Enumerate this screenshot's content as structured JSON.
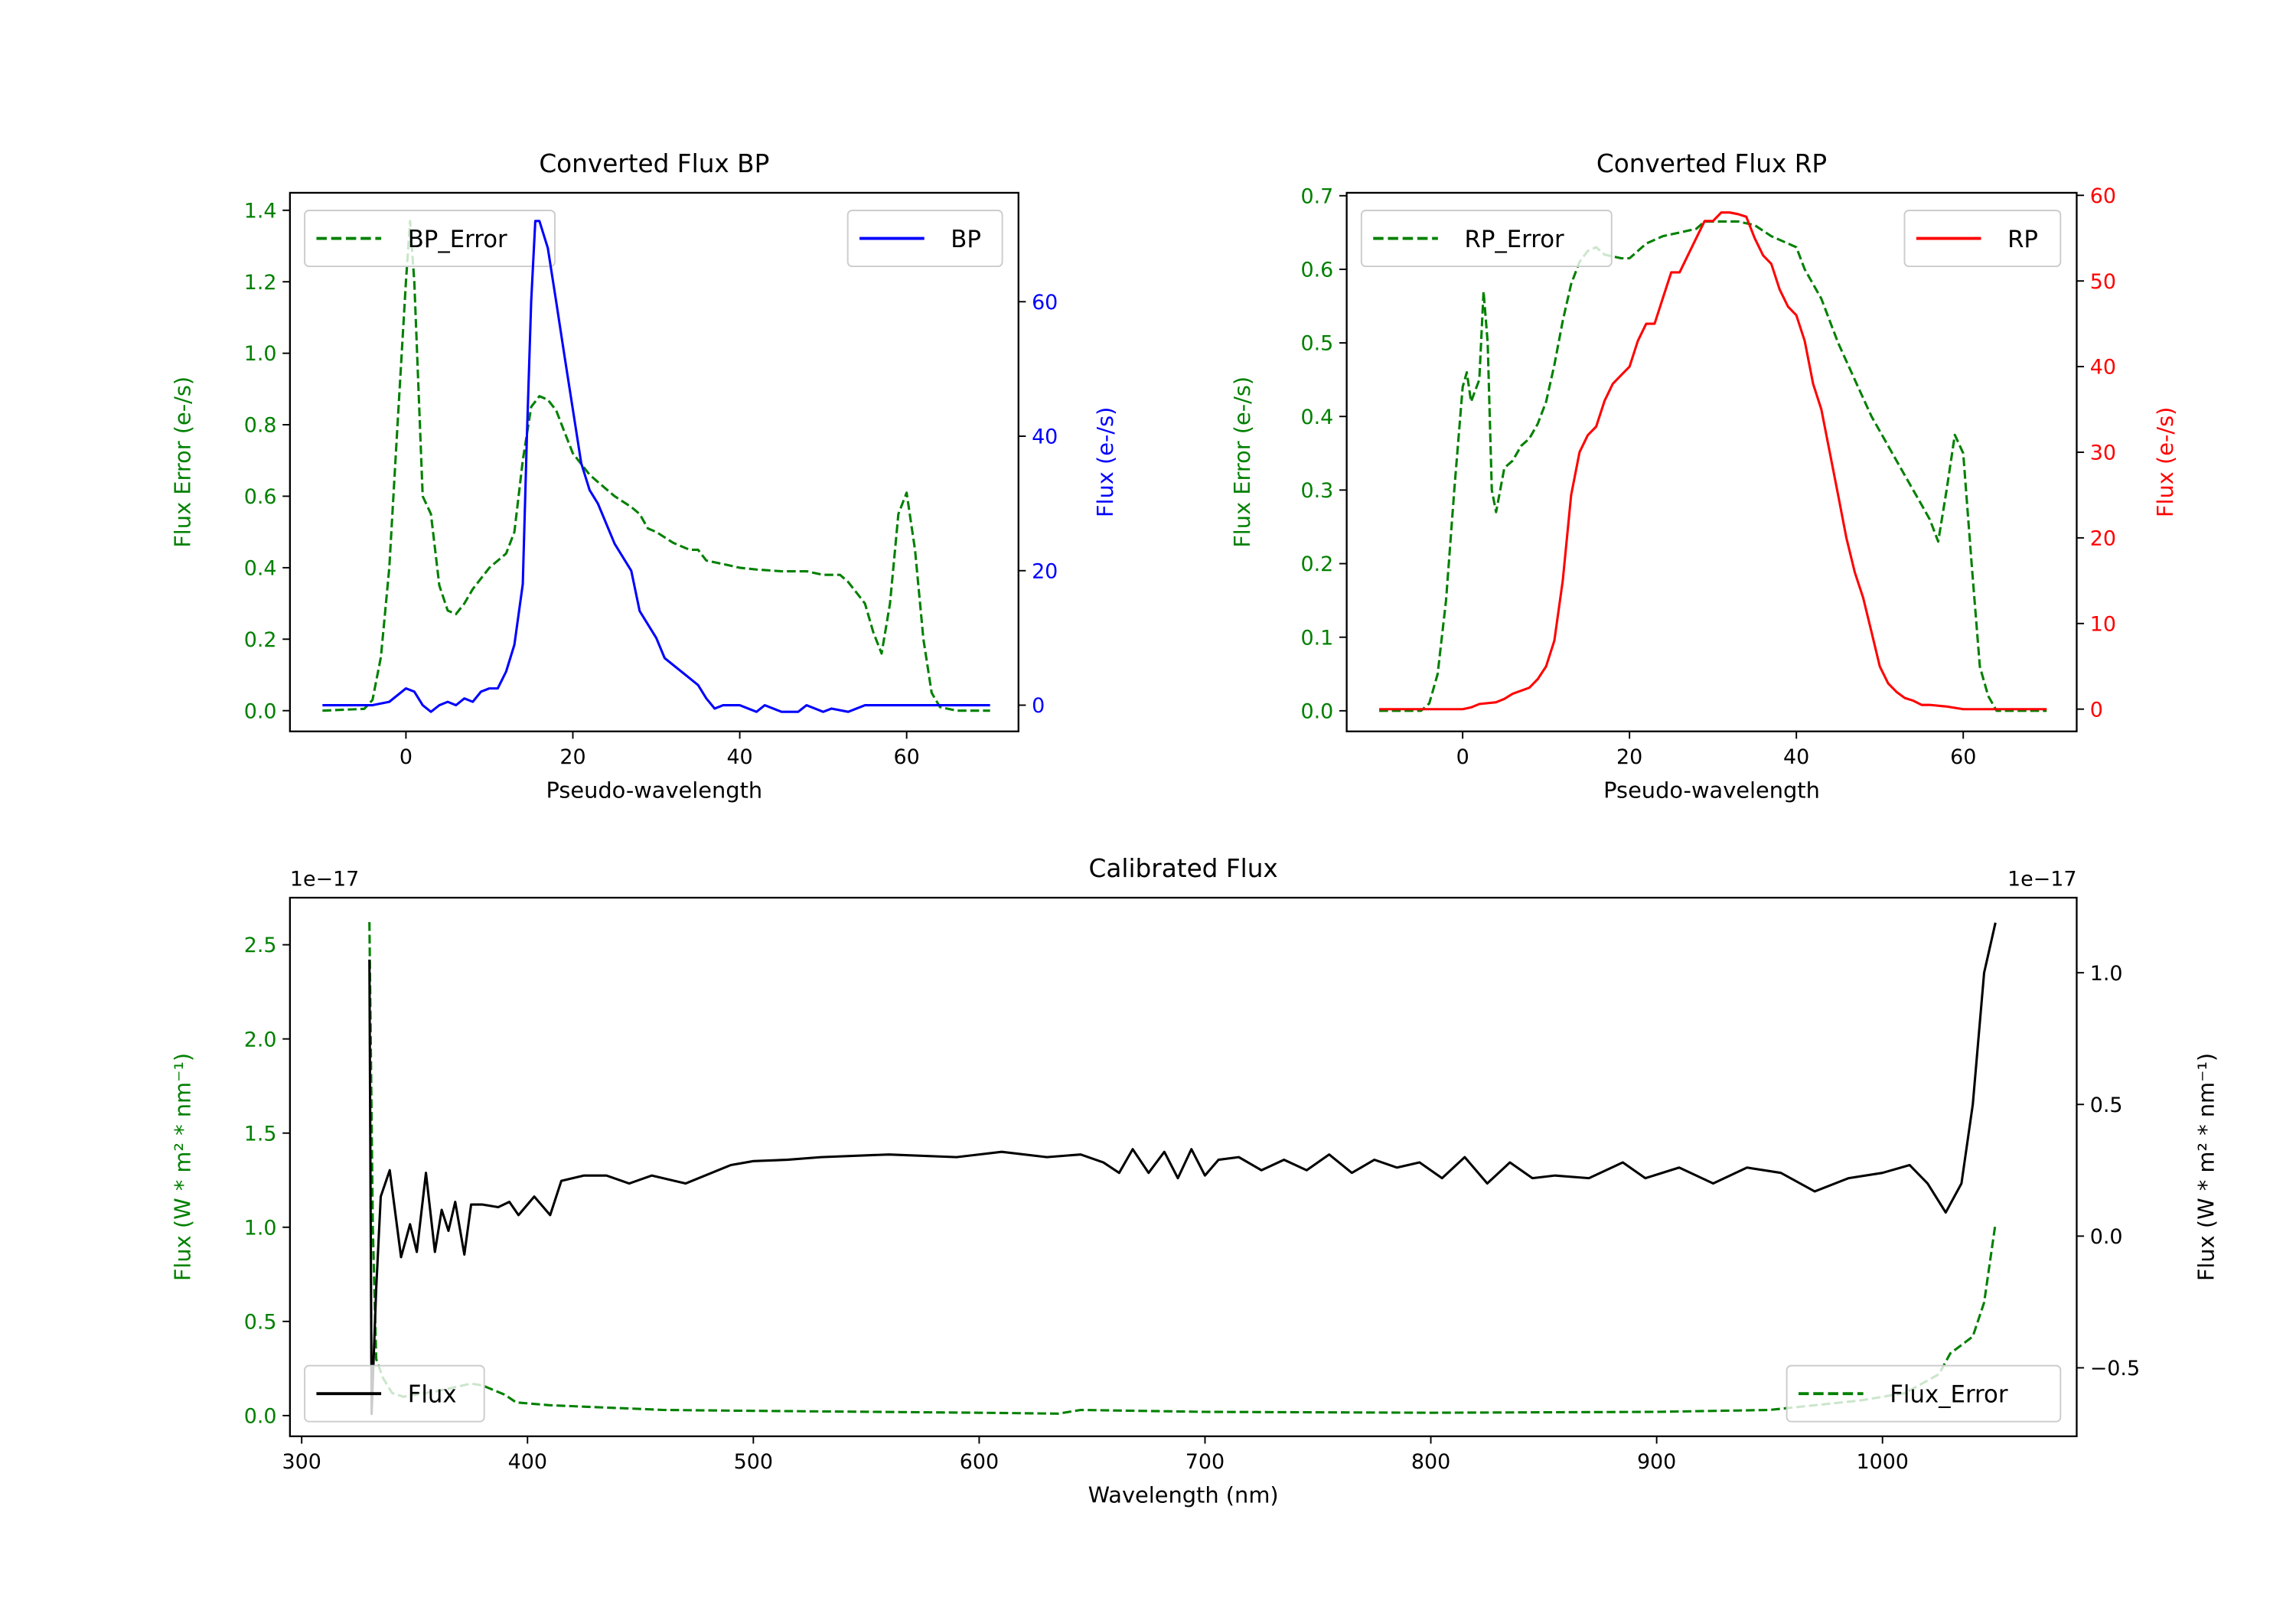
{
  "chart_data": [
    {
      "type": "line",
      "title": "Converted Flux BP",
      "xlabel": "Pseudo-wavelength",
      "xlim": [
        -13.9,
        73.4
      ],
      "xticks": [
        0,
        20,
        40,
        60
      ],
      "xtick_labels": [
        "0",
        "20",
        "40",
        "60"
      ],
      "left_axis": {
        "label": "Flux Error (e-/s)",
        "color": "#008000",
        "lim": [
          -0.058,
          1.449
        ],
        "ticks": [
          0,
          0.2,
          0.4,
          0.6,
          0.8,
          1.0,
          1.2,
          1.4
        ],
        "tick_labels": [
          "0.0",
          "0.2",
          "0.4",
          "0.6",
          "0.8",
          "1.0",
          "1.2",
          "1.4"
        ]
      },
      "right_axis": {
        "label": "Flux (e-/s)",
        "color": "#0000ff",
        "lim": [
          -3.9,
          76.2
        ],
        "ticks": [
          0,
          20,
          40,
          60
        ],
        "tick_labels": [
          "0",
          "20",
          "40",
          "60"
        ]
      },
      "series": [
        {
          "name": "BP_Error",
          "axis": "left",
          "color": "#008000",
          "style": "dashed",
          "x": [
            -10,
            -5,
            -4,
            -3,
            -2,
            -1,
            0,
            0.5,
            1,
            2,
            3,
            4,
            5,
            6,
            7,
            8,
            10,
            12,
            13,
            14,
            15,
            16,
            17,
            18,
            19,
            20,
            22,
            23,
            25,
            27,
            28,
            29,
            30,
            32,
            34,
            35,
            36,
            38,
            40,
            42,
            45,
            48,
            50,
            52,
            53,
            54,
            55,
            56,
            57,
            58,
            59,
            60,
            61,
            62,
            63,
            64,
            66,
            70
          ],
          "y": [
            0,
            0.005,
            0.03,
            0.15,
            0.4,
            0.8,
            1.2,
            1.37,
            1.2,
            0.6,
            0.55,
            0.35,
            0.28,
            0.27,
            0.3,
            0.34,
            0.4,
            0.44,
            0.5,
            0.7,
            0.85,
            0.88,
            0.87,
            0.84,
            0.78,
            0.72,
            0.66,
            0.64,
            0.6,
            0.57,
            0.55,
            0.51,
            0.5,
            0.47,
            0.45,
            0.45,
            0.42,
            0.41,
            0.4,
            0.395,
            0.39,
            0.39,
            0.38,
            0.38,
            0.36,
            0.33,
            0.3,
            0.22,
            0.16,
            0.3,
            0.55,
            0.61,
            0.45,
            0.2,
            0.05,
            0.01,
            0,
            0
          ]
        },
        {
          "name": "BP",
          "axis": "right",
          "color": "#0000ff",
          "style": "solid",
          "x": [
            -10,
            -4,
            -2,
            0,
            1,
            2,
            3,
            4,
            5,
            6,
            7,
            8,
            9,
            10,
            11,
            12,
            13,
            14,
            14.5,
            15,
            15.5,
            16,
            17,
            18,
            19,
            20,
            21,
            22,
            23,
            25,
            27,
            28,
            30,
            31,
            33,
            35,
            36,
            37,
            38,
            40,
            42,
            43,
            45,
            47,
            48,
            50,
            51,
            53,
            55,
            58,
            60,
            65,
            70
          ],
          "y": [
            0,
            0,
            0.5,
            2.5,
            2,
            0,
            -1,
            0,
            0.5,
            0,
            1,
            0.5,
            2,
            2.5,
            2.5,
            5,
            9,
            18,
            40,
            60,
            72,
            72,
            68,
            60,
            52,
            44,
            36,
            32,
            30,
            24,
            20,
            14,
            10,
            7,
            5,
            3,
            1,
            -0.5,
            0,
            0,
            -1,
            0,
            -1,
            -1,
            0,
            -1,
            -0.5,
            -1,
            0,
            0,
            0,
            0,
            0
          ]
        }
      ],
      "legends": [
        {
          "placement": "upper left",
          "entries": [
            "BP_Error"
          ]
        },
        {
          "placement": "upper right",
          "entries": [
            "BP"
          ]
        }
      ]
    },
    {
      "type": "line",
      "title": "Converted Flux RP",
      "xlabel": "Pseudo-wavelength",
      "xlim": [
        -13.9,
        73.6
      ],
      "xticks": [
        0,
        20,
        40,
        60
      ],
      "xtick_labels": [
        "0",
        "20",
        "40",
        "60"
      ],
      "left_axis": {
        "label": "Flux Error (e-/s)",
        "color": "#008000",
        "lim": [
          -0.028,
          0.704
        ],
        "ticks": [
          0,
          0.1,
          0.2,
          0.3,
          0.4,
          0.5,
          0.6,
          0.7
        ],
        "tick_labels": [
          "0.0",
          "0.1",
          "0.2",
          "0.3",
          "0.4",
          "0.5",
          "0.6",
          "0.7"
        ]
      },
      "right_axis": {
        "label": "Flux (e-/s)",
        "color": "#ff0000",
        "lim": [
          -2.6,
          60.3
        ],
        "ticks": [
          0,
          10,
          20,
          30,
          40,
          50,
          60
        ],
        "tick_labels": [
          "0",
          "10",
          "20",
          "30",
          "40",
          "50",
          "60"
        ]
      },
      "series": [
        {
          "name": "RP_Error",
          "axis": "left",
          "color": "#008000",
          "style": "dashed",
          "x": [
            -10,
            -5,
            -4,
            -3,
            -2,
            -1,
            0,
            0.5,
            1,
            2,
            2.5,
            3,
            3.5,
            4,
            5,
            6,
            7,
            8,
            9,
            10,
            11,
            12,
            13,
            14,
            15,
            16,
            17,
            19,
            20,
            22,
            24,
            26,
            28,
            29,
            31,
            33,
            35,
            37,
            39,
            40,
            41,
            43,
            45,
            47,
            49,
            51,
            53,
            55,
            56,
            57,
            58,
            59,
            60,
            61,
            62,
            63,
            64,
            70
          ],
          "y": [
            0,
            0,
            0.01,
            0.05,
            0.15,
            0.3,
            0.44,
            0.46,
            0.42,
            0.45,
            0.57,
            0.5,
            0.3,
            0.27,
            0.33,
            0.34,
            0.36,
            0.37,
            0.39,
            0.42,
            0.47,
            0.53,
            0.58,
            0.61,
            0.625,
            0.63,
            0.62,
            0.615,
            0.615,
            0.635,
            0.645,
            0.65,
            0.655,
            0.665,
            0.665,
            0.665,
            0.66,
            0.645,
            0.635,
            0.63,
            0.6,
            0.56,
            0.5,
            0.45,
            0.4,
            0.36,
            0.32,
            0.28,
            0.26,
            0.23,
            0.3,
            0.375,
            0.35,
            0.2,
            0.06,
            0.02,
            0,
            0
          ]
        },
        {
          "name": "RP",
          "axis": "right",
          "color": "#ff0000",
          "style": "solid",
          "x": [
            -10,
            -5,
            0,
            1,
            2,
            4,
            5,
            6,
            8,
            9,
            10,
            11,
            12,
            13,
            14,
            15,
            16,
            17,
            18,
            19,
            20,
            21,
            22,
            23,
            24,
            25,
            26,
            27,
            28,
            29,
            30,
            31,
            32,
            33,
            34,
            35,
            36,
            37,
            38,
            39,
            40,
            41,
            42,
            43,
            44,
            45,
            46,
            47,
            48,
            49,
            50,
            51,
            52,
            53,
            54,
            55,
            56,
            58,
            60,
            65,
            70
          ],
          "y": [
            0,
            0,
            0,
            0.2,
            0.6,
            0.8,
            1.2,
            1.8,
            2.5,
            3.5,
            5,
            8,
            15,
            25,
            30,
            32,
            33,
            36,
            38,
            39,
            40,
            43,
            45,
            45,
            48,
            51,
            51,
            53,
            55,
            57,
            57,
            58,
            58,
            57.8,
            57.5,
            55,
            53,
            52,
            49,
            47,
            46,
            43,
            38,
            35,
            30,
            25,
            20,
            16,
            13,
            9,
            5,
            3,
            2,
            1.3,
            1,
            0.5,
            0.5,
            0.3,
            0,
            0,
            0
          ]
        }
      ],
      "legends": [
        {
          "placement": "upper left",
          "entries": [
            "RP_Error"
          ]
        },
        {
          "placement": "upper right",
          "entries": [
            "RP"
          ]
        }
      ]
    },
    {
      "type": "line",
      "title": "Calibrated Flux",
      "xlabel": "Wavelength (nm)",
      "xlim": [
        294.8,
        1086
      ],
      "xticks": [
        300,
        400,
        500,
        600,
        700,
        800,
        900,
        1000
      ],
      "xtick_labels": [
        "300",
        "400",
        "500",
        "600",
        "700",
        "800",
        "900",
        "1000"
      ],
      "offset_text_left": "1e−17",
      "offset_text_right": "1e−17",
      "left_axis": {
        "label": "Flux (W * m² * nm⁻¹)",
        "color": "#008000",
        "lim": [
          -0.11,
          2.75
        ],
        "ticks": [
          0,
          0.5,
          1.0,
          1.5,
          2.0,
          2.5
        ],
        "tick_labels": [
          "0.0",
          "0.5",
          "1.0",
          "1.5",
          "2.0",
          "2.5"
        ]
      },
      "right_axis": {
        "label": "Flux (W * m² * nm⁻¹)",
        "color": "#000000",
        "lim": [
          -0.76,
          1.285
        ],
        "ticks": [
          -0.5,
          0,
          0.5,
          1.0
        ],
        "tick_labels": [
          "−0.5",
          "0.0",
          "0.5",
          "1.0"
        ]
      },
      "series": [
        {
          "name": "Flux_Error",
          "axis": "left",
          "color": "#008000",
          "style": "dashed",
          "x": [
            330,
            331.5,
            333,
            336,
            340,
            345,
            350,
            360,
            375,
            380,
            390,
            395,
            410,
            430,
            450,
            460,
            500,
            600,
            635,
            645,
            700,
            800,
            900,
            950,
            990,
            1010,
            1025,
            1030,
            1040,
            1045,
            1050
          ],
          "y": [
            2.62,
            1.0,
            0.3,
            0.2,
            0.12,
            0.1,
            0.11,
            0.13,
            0.17,
            0.16,
            0.11,
            0.07,
            0.055,
            0.045,
            0.035,
            0.03,
            0.025,
            0.015,
            0.01,
            0.03,
            0.02,
            0.015,
            0.02,
            0.03,
            0.08,
            0.12,
            0.22,
            0.33,
            0.42,
            0.6,
            1.02
          ]
        },
        {
          "name": "Flux",
          "axis": "right",
          "color": "#000000",
          "style": "solid",
          "x": [
            330,
            331,
            333,
            335,
            339,
            344,
            348,
            351,
            355,
            359,
            362,
            365,
            368,
            372,
            375,
            380,
            387,
            392,
            396,
            403,
            410,
            415,
            425,
            435,
            445,
            455,
            470,
            490,
            500,
            515,
            530,
            560,
            590,
            610,
            630,
            645,
            655,
            662,
            668,
            675,
            682,
            688,
            694,
            700,
            706,
            715,
            725,
            735,
            745,
            755,
            765,
            775,
            785,
            795,
            805,
            815,
            825,
            835,
            845,
            855,
            870,
            885,
            895,
            910,
            925,
            940,
            955,
            970,
            985,
            1000,
            1012,
            1020,
            1028,
            1035,
            1040,
            1045,
            1050
          ],
          "y": [
            1.05,
            -0.675,
            -0.2,
            0.15,
            0.25,
            -0.08,
            0.045,
            -0.06,
            0.24,
            -0.06,
            0.1,
            0.02,
            0.13,
            -0.07,
            0.12,
            0.12,
            0.11,
            0.13,
            0.08,
            0.15,
            0.08,
            0.21,
            0.23,
            0.23,
            0.2,
            0.23,
            0.2,
            0.27,
            0.285,
            0.29,
            0.3,
            0.31,
            0.3,
            0.32,
            0.3,
            0.31,
            0.28,
            0.24,
            0.33,
            0.24,
            0.32,
            0.22,
            0.33,
            0.23,
            0.29,
            0.3,
            0.25,
            0.29,
            0.25,
            0.31,
            0.24,
            0.29,
            0.26,
            0.28,
            0.22,
            0.3,
            0.2,
            0.28,
            0.22,
            0.23,
            0.22,
            0.28,
            0.22,
            0.26,
            0.2,
            0.26,
            0.24,
            0.17,
            0.22,
            0.24,
            0.27,
            0.2,
            0.09,
            0.2,
            0.5,
            1.0,
            1.19
          ]
        }
      ],
      "legends": [
        {
          "placement": "lower left",
          "entries": [
            "Flux"
          ]
        },
        {
          "placement": "lower right",
          "entries": [
            "Flux_Error"
          ]
        }
      ]
    }
  ]
}
